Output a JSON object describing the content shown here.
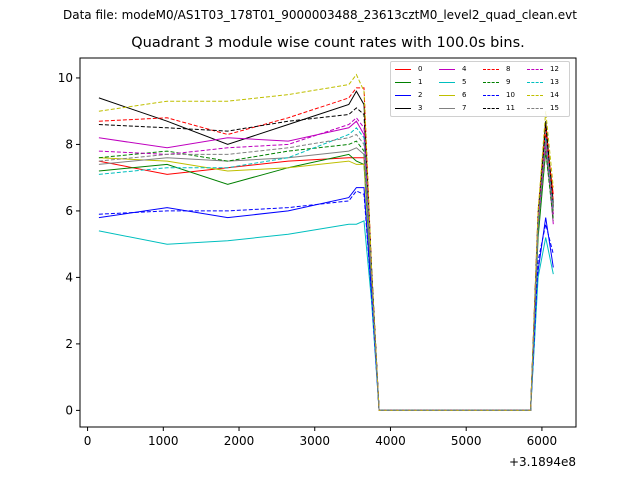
{
  "header": {
    "file_label": "Data file: modeM0/AS1T03_178T01_9000003488_23613cztM0_level2_quad_clean.evt"
  },
  "chart_data": {
    "type": "line",
    "title": "Quadrant 3 module wise count rates with 100.0s bins.",
    "xlabel": "",
    "ylabel": "",
    "x_offset_label": "+3.1894e8",
    "xlim": [
      -100,
      6450
    ],
    "ylim": [
      -0.5,
      10.6
    ],
    "xticks": [
      0,
      1000,
      2000,
      3000,
      4000,
      5000,
      6000
    ],
    "yticks": [
      0,
      2,
      4,
      6,
      8,
      10
    ],
    "grid": false,
    "legend_position": "top-right",
    "x": [
      150,
      1050,
      1850,
      2650,
      3450,
      3550,
      3650,
      3750,
      3850,
      5850,
      5950,
      6050,
      6150
    ],
    "series": [
      {
        "name": "0",
        "color": "#ff0000",
        "style": "solid",
        "values": [
          7.5,
          7.1,
          7.3,
          7.5,
          7.6,
          7.6,
          7.6,
          4.0,
          0.0,
          0.0,
          5.5,
          8.3,
          6.5
        ]
      },
      {
        "name": "1",
        "color": "#008000",
        "style": "solid",
        "values": [
          7.2,
          7.4,
          6.8,
          7.3,
          7.7,
          7.5,
          7.4,
          3.8,
          0.0,
          0.0,
          5.2,
          7.8,
          5.9
        ]
      },
      {
        "name": "2",
        "color": "#0000ff",
        "style": "solid",
        "values": [
          5.8,
          6.1,
          5.8,
          6.0,
          6.4,
          6.7,
          6.7,
          3.5,
          0.0,
          0.0,
          4.2,
          5.8,
          4.3
        ]
      },
      {
        "name": "3",
        "color": "#000000",
        "style": "solid",
        "values": [
          9.4,
          8.7,
          8.0,
          8.6,
          9.2,
          9.6,
          9.2,
          4.3,
          0.0,
          0.0,
          5.8,
          8.7,
          6.1
        ]
      },
      {
        "name": "4",
        "color": "#bf00bf",
        "style": "solid",
        "values": [
          8.2,
          7.9,
          8.2,
          8.1,
          8.5,
          8.7,
          8.3,
          4.1,
          0.0,
          0.0,
          5.6,
          8.2,
          5.6
        ]
      },
      {
        "name": "5",
        "color": "#00bfbf",
        "style": "solid",
        "values": [
          5.4,
          5.0,
          5.1,
          5.3,
          5.6,
          5.6,
          5.7,
          3.3,
          0.0,
          0.0,
          4.0,
          5.2,
          4.1
        ]
      },
      {
        "name": "6",
        "color": "#bfbf00",
        "style": "solid",
        "values": [
          7.6,
          7.5,
          7.2,
          7.3,
          7.5,
          7.4,
          7.4,
          4.0,
          0.0,
          0.0,
          5.6,
          7.9,
          6.0
        ]
      },
      {
        "name": "7",
        "color": "#808080",
        "style": "solid",
        "values": [
          7.4,
          7.6,
          7.5,
          7.6,
          7.8,
          7.9,
          7.7,
          4.0,
          0.0,
          0.0,
          5.5,
          8.0,
          5.8
        ]
      },
      {
        "name": "8",
        "color": "#ff0000",
        "style": "dashed",
        "values": [
          8.7,
          8.8,
          8.3,
          8.8,
          9.4,
          9.7,
          9.7,
          4.3,
          0.0,
          0.0,
          6.0,
          8.6,
          6.3
        ]
      },
      {
        "name": "9",
        "color": "#008000",
        "style": "dashed",
        "values": [
          7.6,
          7.8,
          7.5,
          7.8,
          8.0,
          8.1,
          7.8,
          4.0,
          0.0,
          0.0,
          5.5,
          7.8,
          5.7
        ]
      },
      {
        "name": "10",
        "color": "#0000ff",
        "style": "dashed",
        "values": [
          5.9,
          6.0,
          6.0,
          6.1,
          6.3,
          6.6,
          6.5,
          3.5,
          0.0,
          0.0,
          4.5,
          5.6,
          4.7
        ]
      },
      {
        "name": "11",
        "color": "#000000",
        "style": "dashed",
        "values": [
          8.6,
          8.5,
          8.4,
          8.7,
          8.9,
          9.1,
          8.9,
          4.3,
          0.0,
          0.0,
          5.9,
          8.6,
          6.2
        ]
      },
      {
        "name": "12",
        "color": "#bf00bf",
        "style": "dashed",
        "values": [
          7.8,
          7.7,
          7.9,
          8.0,
          8.6,
          8.8,
          8.5,
          4.1,
          0.0,
          0.0,
          5.6,
          8.0,
          5.9
        ]
      },
      {
        "name": "13",
        "color": "#00bfbf",
        "style": "dashed",
        "values": [
          7.1,
          7.3,
          7.3,
          7.6,
          8.3,
          8.5,
          8.2,
          4.0,
          0.0,
          0.0,
          5.6,
          8.2,
          6.0
        ]
      },
      {
        "name": "14",
        "color": "#bfbf00",
        "style": "dashed",
        "values": [
          9.0,
          9.3,
          9.3,
          9.5,
          9.8,
          10.1,
          9.6,
          4.3,
          0.0,
          0.0,
          6.0,
          9.0,
          6.7
        ]
      },
      {
        "name": "15",
        "color": "#808080",
        "style": "dashed",
        "values": [
          7.5,
          7.7,
          7.7,
          7.9,
          8.2,
          8.3,
          8.0,
          4.0,
          0.0,
          0.0,
          5.6,
          8.1,
          6.0
        ]
      }
    ]
  }
}
